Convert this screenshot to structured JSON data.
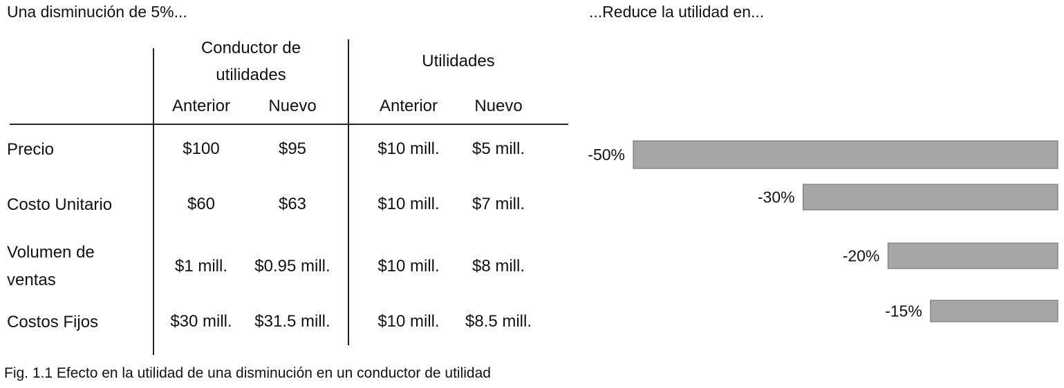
{
  "left_title": "Una disminución de 5%...",
  "right_title": "...Reduce la utilidad en...",
  "table": {
    "group_headers": {
      "conductor_line1": "Conductor de",
      "conductor_line2": "utilidades",
      "utilidades": "Utilidades"
    },
    "sub_headers": {
      "c_anterior": "Anterior",
      "c_nuevo": "Nuevo",
      "u_anterior": "Anterior",
      "u_nuevo": "Nuevo"
    },
    "rows": [
      {
        "label": "Precio",
        "c_anterior": "$100",
        "c_nuevo": "$95",
        "u_anterior": "$10 mill.",
        "u_nuevo": "$5 mill."
      },
      {
        "label": "Costo Unitario",
        "c_anterior": "$60",
        "c_nuevo": "$63",
        "u_anterior": "$10 mill.",
        "u_nuevo": "$7 mill."
      },
      {
        "label_line1": "Volumen de",
        "label_line2": "ventas",
        "c_anterior": "$1 mill.",
        "c_nuevo": "$0.95 mill.",
        "u_anterior": "$10 mill.",
        "u_nuevo": "$8 mill."
      },
      {
        "label": "Costos Fijos",
        "c_anterior": "$30 mill.",
        "c_nuevo": "$31.5 mill.",
        "u_anterior": "$10 mill.",
        "u_nuevo": "$8.5 mill."
      }
    ]
  },
  "chart_data": {
    "type": "bar",
    "orientation": "horizontal",
    "title": "...Reduce la utilidad en...",
    "categories": [
      "Precio",
      "Costo Unitario",
      "Volumen de ventas",
      "Costos Fijos"
    ],
    "values": [
      -50,
      -30,
      -20,
      -15
    ],
    "data_labels": [
      "-50%",
      "-30%",
      "-20%",
      "-15%"
    ],
    "bar_color": "#a6a6a6",
    "xlim": [
      -50,
      0
    ],
    "grid": false,
    "legend": false
  },
  "caption": "Fig. 1.1 Efecto en la utilidad de una disminución en un conductor de utilidad"
}
